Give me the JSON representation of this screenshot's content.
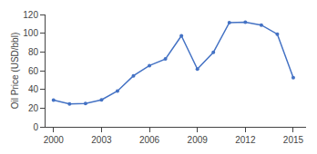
{
  "chart_data": {
    "type": "line",
    "x": [
      2000,
      2001,
      2002,
      2003,
      2004,
      2005,
      2006,
      2007,
      2008,
      2009,
      2010,
      2011,
      2012,
      2013,
      2014,
      2015
    ],
    "values": [
      28.5,
      24.4,
      25.0,
      28.8,
      38.3,
      54.5,
      65.4,
      72.5,
      97.3,
      61.7,
      79.5,
      111.3,
      111.7,
      108.7,
      99.0,
      52.4
    ],
    "color": "#4472C4",
    "marker": "circle",
    "ylabel": "Oil Price (USD/bbl)",
    "xlim": [
      1999.5,
      2015.8
    ],
    "ylim": [
      0,
      120
    ],
    "xticks": [
      2000,
      2003,
      2006,
      2009,
      2012,
      2015
    ],
    "yticks": [
      0,
      20,
      40,
      60,
      80,
      100,
      120
    ],
    "grid": false
  }
}
